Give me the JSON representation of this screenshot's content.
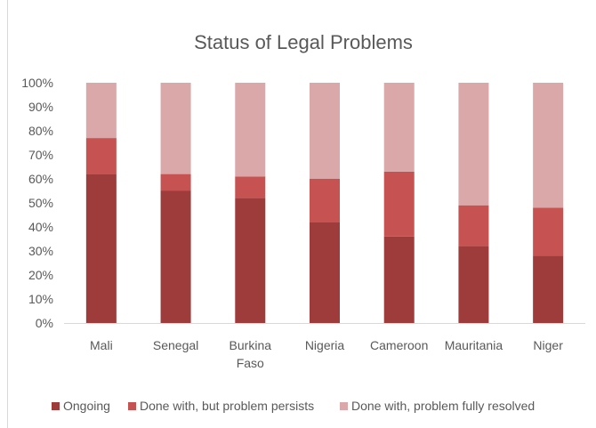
{
  "chart_data": {
    "type": "bar",
    "stacked": true,
    "title": "Status of Legal Problems",
    "categories": [
      [
        "Mali"
      ],
      [
        "Senegal"
      ],
      [
        "Burkina",
        "Faso"
      ],
      [
        "Nigeria"
      ],
      [
        "Cameroon"
      ],
      [
        "Mauritania"
      ],
      [
        "Niger"
      ]
    ],
    "y_ticks": [
      "0%",
      "10%",
      "20%",
      "30%",
      "40%",
      "50%",
      "60%",
      "70%",
      "80%",
      "90%",
      "100%"
    ],
    "ylim": [
      0,
      100
    ],
    "grid": false,
    "legend_position": "bottom",
    "series": [
      {
        "name": "Ongoing",
        "color": "#9e3b3b",
        "values": [
          62,
          55,
          52,
          42,
          36,
          32,
          28
        ]
      },
      {
        "name": "Done with, but problem persists",
        "color": "#c65252",
        "values": [
          15,
          7,
          9,
          18,
          27,
          17,
          20
        ]
      },
      {
        "name": "Done with, problem fully resolved",
        "color": "#daa8a8",
        "values": [
          23,
          38,
          39,
          40,
          37,
          51,
          52
        ]
      }
    ]
  }
}
